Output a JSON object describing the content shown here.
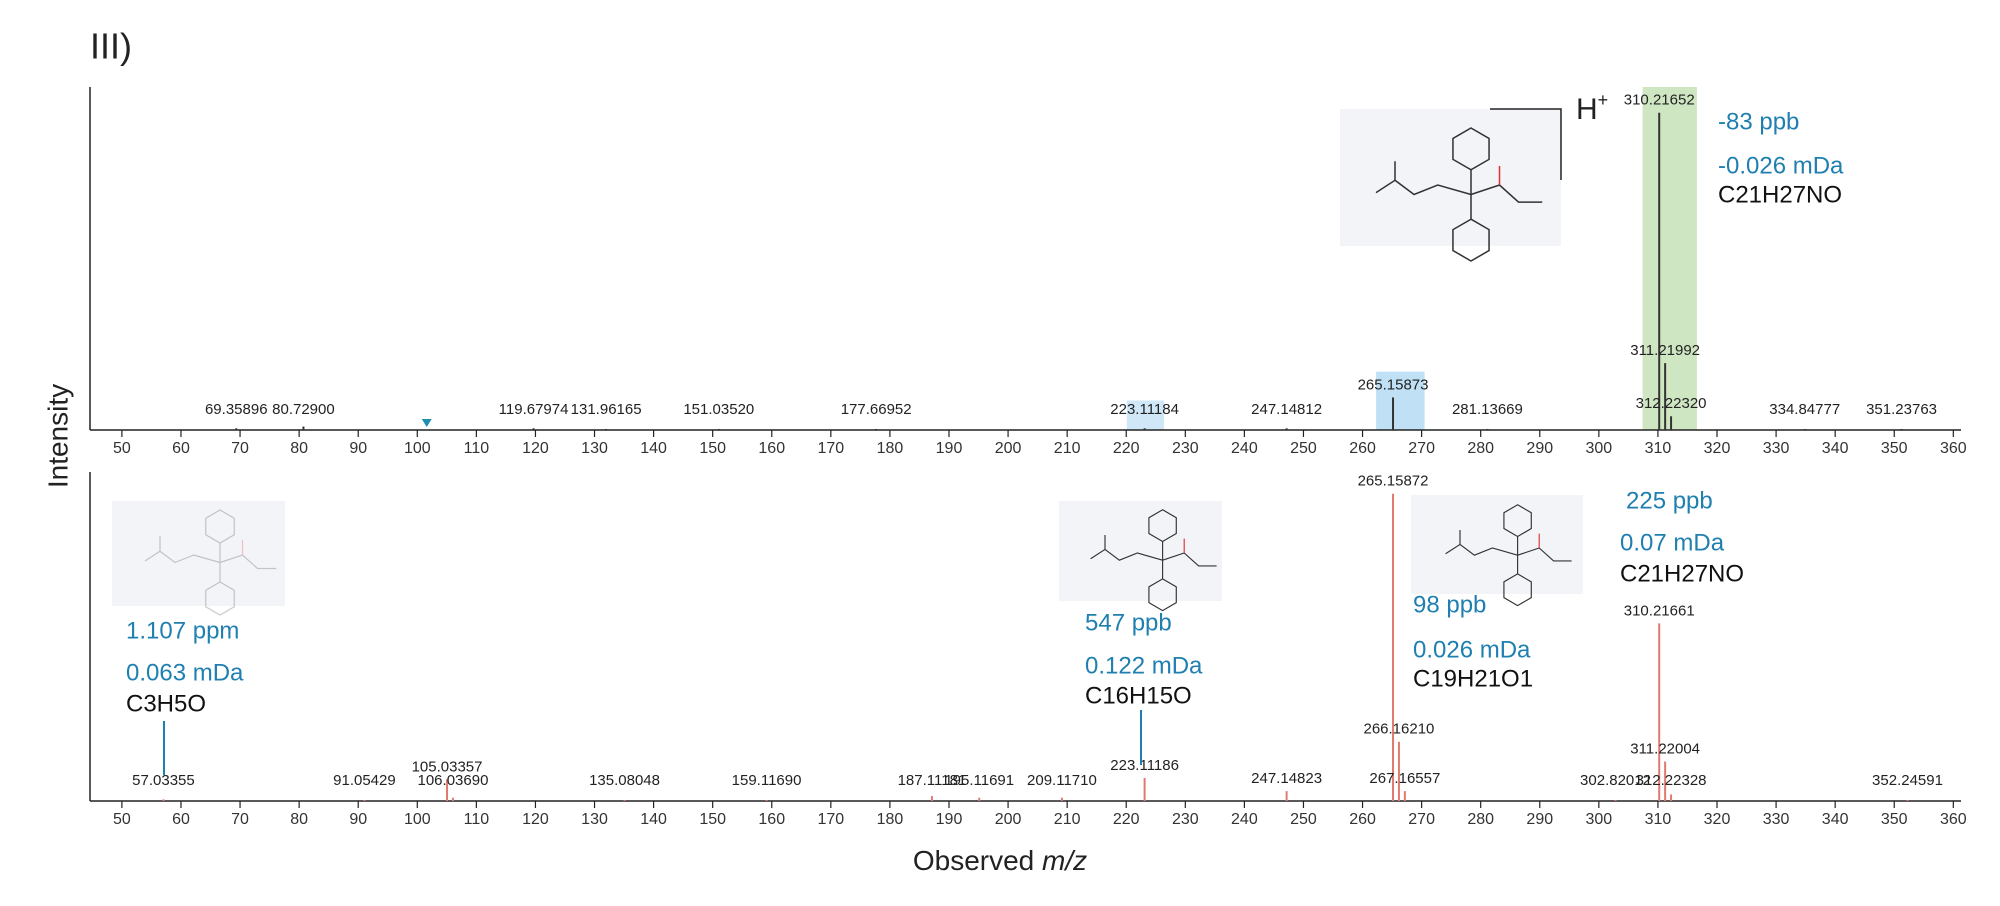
{
  "panel_label": "III)",
  "ylabel": "Intensity",
  "xlabel": {
    "text": "Observed",
    "italic": "m/z"
  },
  "charge": {
    "text": "H",
    "sup": "+"
  },
  "annotations": [
    [
      "-83 ppb",
      "-0.026 mDa",
      "C21H27NO"
    ],
    [
      "1.107 ppm",
      "0.063 mDa",
      "C3H5O"
    ],
    [
      "547 ppb",
      "0.122 mDa",
      "C16H15O"
    ],
    [
      "98 ppb",
      "0.026 mDa",
      "C19H21O1"
    ],
    [
      "225 ppb",
      "0.07 mDa",
      "C21H27NO"
    ]
  ],
  "chart_data": [
    {
      "type": "stem",
      "color": "#333333",
      "x": [
        69.35896,
        80.729,
        119.67974,
        131.96165,
        151.0352,
        177.66952,
        223.11184,
        247.14812,
        265.15873,
        281.13669,
        310.21652,
        311.21992,
        312.2232,
        334.84777,
        351.23763
      ],
      "x_labels": [
        "69.35896",
        "80.72900",
        "119.67974",
        "131.96165",
        "151.03520",
        "177.66952",
        "223.11184",
        "247.14812",
        "265.15873",
        "281.13669",
        "310.21652",
        "311.21992",
        "312.22320",
        "334.84777",
        "351.23763"
      ],
      "values": [
        0.5,
        1,
        0.5,
        0.3,
        0.3,
        0.3,
        0.5,
        0.5,
        9.5,
        0.3,
        92.5,
        19.5,
        4,
        0.3,
        0.3
      ],
      "highlights": [
        {
          "x": [
            307.4,
            316.6
          ],
          "y": [
            0,
            100
          ],
          "color": "#cfe6c2"
        },
        {
          "x": [
            262.3,
            270.5
          ],
          "y": [
            0,
            17
          ],
          "color": "#bfe0f5"
        },
        {
          "x": [
            220.1,
            226.4
          ],
          "y": [
            0,
            8.6
          ],
          "color": "#cfe7f7"
        }
      ],
      "markers": [
        101.6
      ],
      "xlim": [
        44.6,
        361.3
      ],
      "ylim": [
        0,
        100
      ],
      "xticks": [
        50,
        60,
        70,
        80,
        90,
        100,
        110,
        120,
        130,
        140,
        150,
        160,
        170,
        180,
        190,
        200,
        210,
        220,
        230,
        240,
        250,
        260,
        270,
        280,
        290,
        300,
        310,
        320,
        330,
        340,
        350,
        360
      ]
    },
    {
      "type": "stem",
      "color": "#e07a70",
      "x": [
        57.03355,
        91.05429,
        105.03357,
        106.0369,
        135.08048,
        159.1169,
        187.11181,
        195.11691,
        209.1171,
        223.11186,
        247.14823,
        265.15872,
        266.1621,
        267.16557,
        302.82012,
        310.21661,
        311.22004,
        312.22328,
        352.24591
      ],
      "x_labels": [
        "57.03355",
        "91.05429",
        "105.03357",
        "106.03690",
        "135.08048",
        "159.11690",
        "187.11181",
        "195.11691",
        "209.11710",
        "223.11186",
        "247.14823",
        "265.15872",
        "266.16210",
        "267.16557",
        "302.82012",
        "310.21661",
        "311.22004",
        "312.22328",
        "352.24591"
      ],
      "values": [
        0.5,
        0.3,
        6.6,
        1,
        0.3,
        0.3,
        1.5,
        1,
        1,
        7,
        3,
        93.4,
        18,
        3,
        0.3,
        54,
        12,
        2,
        0.3
      ],
      "xlim": [
        44.6,
        361.3
      ],
      "ylim": [
        0,
        100
      ],
      "xticks": [
        50,
        60,
        70,
        80,
        90,
        100,
        110,
        120,
        130,
        140,
        150,
        160,
        170,
        180,
        190,
        200,
        210,
        220,
        230,
        240,
        250,
        260,
        270,
        280,
        290,
        300,
        310,
        320,
        330,
        340,
        350,
        360
      ]
    }
  ]
}
